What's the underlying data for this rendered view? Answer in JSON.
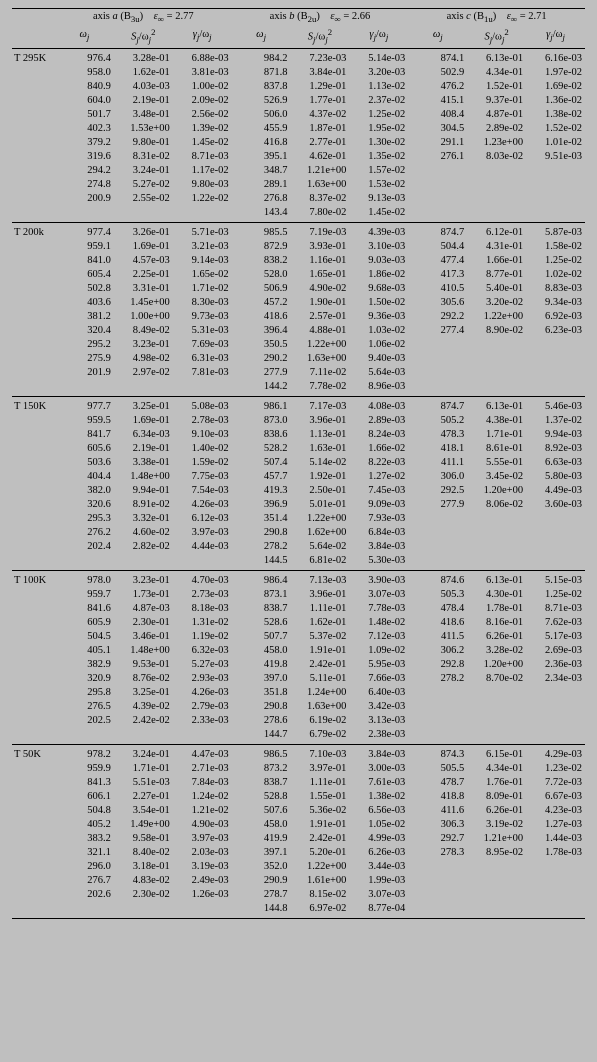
{
  "header": {
    "axis_a": {
      "label_prefix": "axis ",
      "letter": "a",
      "sym": " (B",
      "sub": "3u",
      "close": ")",
      "eps_label": "ε",
      "eps_sub": "∞",
      "eps_eq": " = ",
      "eps_val": "2.77"
    },
    "axis_b": {
      "label_prefix": "axis ",
      "letter": "b",
      "sym": " (B",
      "sub": "2u",
      "close": ")",
      "eps_label": "ε",
      "eps_sub": "∞",
      "eps_eq": " = ",
      "eps_val": "2.66"
    },
    "axis_c": {
      "label_prefix": "axis ",
      "letter": "c",
      "sym": " (B",
      "sub": "1u",
      "close": ")",
      "eps_label": "ε",
      "eps_sub": "∞",
      "eps_eq": " = ",
      "eps_val": "2.71"
    },
    "col": {
      "omega": "ω",
      "omega_sub": "j",
      "S": "S",
      "S_sub": "j",
      "over": "/ω",
      "over_sub": "j",
      "sq": "2",
      "gamma": "γ",
      "gamma_sub": "j"
    }
  },
  "sections": [
    {
      "label": "T 295K",
      "rows": [
        [
          "976.4",
          "3.28e-01",
          "6.88e-03",
          "984.2",
          "7.23e-03",
          "5.14e-03",
          "874.1",
          "6.13e-01",
          "6.16e-03"
        ],
        [
          "958.0",
          "1.62e-01",
          "3.81e-03",
          "871.8",
          "3.84e-01",
          "3.20e-03",
          "502.9",
          "4.34e-01",
          "1.97e-02"
        ],
        [
          "840.9",
          "4.03e-03",
          "1.00e-02",
          "837.8",
          "1.29e-01",
          "1.13e-02",
          "476.2",
          "1.52e-01",
          "1.69e-02"
        ],
        [
          "604.0",
          "2.19e-01",
          "2.09e-02",
          "526.9",
          "1.77e-01",
          "2.37e-02",
          "415.1",
          "9.37e-01",
          "1.36e-02"
        ],
        [
          "501.7",
          "3.48e-01",
          "2.56e-02",
          "506.0",
          "4.37e-02",
          "1.25e-02",
          "408.4",
          "4.87e-01",
          "1.38e-02"
        ],
        [
          "402.3",
          "1.53e+00",
          "1.39e-02",
          "455.9",
          "1.87e-01",
          "1.95e-02",
          "304.5",
          "2.89e-02",
          "1.52e-02"
        ],
        [
          "379.2",
          "9.80e-01",
          "1.45e-02",
          "416.8",
          "2.77e-01",
          "1.30e-02",
          "291.1",
          "1.23e+00",
          "1.01e-02"
        ],
        [
          "319.6",
          "8.31e-02",
          "8.71e-03",
          "395.1",
          "4.62e-01",
          "1.35e-02",
          "276.1",
          "8.03e-02",
          "9.51e-03"
        ],
        [
          "294.2",
          "3.24e-01",
          "1.17e-02",
          "348.7",
          "1.21e+00",
          "1.57e-02",
          "",
          "",
          ""
        ],
        [
          "274.8",
          "5.27e-02",
          "9.80e-03",
          "289.1",
          "1.63e+00",
          "1.53e-02",
          "",
          "",
          ""
        ],
        [
          "200.9",
          "2.55e-02",
          "1.22e-02",
          "276.8",
          "8.37e-02",
          "9.13e-03",
          "",
          "",
          ""
        ],
        [
          "",
          "",
          "",
          "143.4",
          "7.80e-02",
          "1.45e-02",
          "",
          "",
          ""
        ]
      ]
    },
    {
      "label": "T 200k",
      "rows": [
        [
          "977.4",
          "3.26e-01",
          "5.71e-03",
          "985.5",
          "7.19e-03",
          "4.39e-03",
          "874.7",
          "6.12e-01",
          "5.87e-03"
        ],
        [
          "959.1",
          "1.69e-01",
          "3.21e-03",
          "872.9",
          "3.93e-01",
          "3.10e-03",
          "504.4",
          "4.31e-01",
          "1.58e-02"
        ],
        [
          "841.0",
          "4.57e-03",
          "9.14e-03",
          "838.2",
          "1.16e-01",
          "9.03e-03",
          "477.4",
          "1.66e-01",
          "1.25e-02"
        ],
        [
          "605.4",
          "2.25e-01",
          "1.65e-02",
          "528.0",
          "1.65e-01",
          "1.86e-02",
          "417.3",
          "8.77e-01",
          "1.02e-02"
        ],
        [
          "502.8",
          "3.31e-01",
          "1.71e-02",
          "506.9",
          "4.90e-02",
          "9.68e-03",
          "410.5",
          "5.40e-01",
          "8.83e-03"
        ],
        [
          "403.6",
          "1.45e+00",
          "8.30e-03",
          "457.2",
          "1.90e-01",
          "1.50e-02",
          "305.6",
          "3.20e-02",
          "9.34e-03"
        ],
        [
          "381.2",
          "1.00e+00",
          "9.73e-03",
          "418.6",
          "2.57e-01",
          "9.36e-03",
          "292.2",
          "1.22e+00",
          "6.92e-03"
        ],
        [
          "320.4",
          "8.49e-02",
          "5.31e-03",
          "396.4",
          "4.88e-01",
          "1.03e-02",
          "277.4",
          "8.90e-02",
          "6.23e-03"
        ],
        [
          "295.2",
          "3.23e-01",
          "7.69e-03",
          "350.5",
          "1.22e+00",
          "1.06e-02",
          "",
          "",
          ""
        ],
        [
          "275.9",
          "4.98e-02",
          "6.31e-03",
          "290.2",
          "1.63e+00",
          "9.40e-03",
          "",
          "",
          ""
        ],
        [
          "201.9",
          "2.97e-02",
          "7.81e-03",
          "277.9",
          "7.11e-02",
          "5.64e-03",
          "",
          "",
          ""
        ],
        [
          "",
          "",
          "",
          "144.2",
          "7.78e-02",
          "8.96e-03",
          "",
          "",
          ""
        ]
      ]
    },
    {
      "label": "T 150K",
      "rows": [
        [
          "977.7",
          "3.25e-01",
          "5.08e-03",
          "986.1",
          "7.17e-03",
          "4.08e-03",
          "874.7",
          "6.13e-01",
          "5.46e-03"
        ],
        [
          "959.5",
          "1.69e-01",
          "2.78e-03",
          "873.0",
          "3.96e-01",
          "2.89e-03",
          "505.2",
          "4.38e-01",
          "1.37e-02"
        ],
        [
          "841.7",
          "6.34e-03",
          "9.10e-03",
          "838.6",
          "1.13e-01",
          "8.24e-03",
          "478.3",
          "1.71e-01",
          "9.94e-03"
        ],
        [
          "605.6",
          "2.19e-01",
          "1.40e-02",
          "528.2",
          "1.63e-01",
          "1.66e-02",
          "418.1",
          "8.61e-01",
          "8.92e-03"
        ],
        [
          "503.6",
          "3.38e-01",
          "1.59e-02",
          "507.4",
          "5.14e-02",
          "8.22e-03",
          "411.1",
          "5.55e-01",
          "6.63e-03"
        ],
        [
          "404.4",
          "1.48e+00",
          "7.75e-03",
          "457.7",
          "1.92e-01",
          "1.27e-02",
          "306.0",
          "3.45e-02",
          "5.80e-03"
        ],
        [
          "382.0",
          "9.94e-01",
          "7.54e-03",
          "419.3",
          "2.50e-01",
          "7.45e-03",
          "292.5",
          "1.20e+00",
          "4.49e-03"
        ],
        [
          "320.6",
          "8.91e-02",
          "4.26e-03",
          "396.9",
          "5.01e-01",
          "9.09e-03",
          "277.9",
          "8.06e-02",
          "3.60e-03"
        ],
        [
          "295.3",
          "3.32e-01",
          "6.12e-03",
          "351.4",
          "1.22e+00",
          "7.93e-03",
          "",
          "",
          ""
        ],
        [
          "276.2",
          "4.60e-02",
          "3.97e-03",
          "290.8",
          "1.62e+00",
          "6.84e-03",
          "",
          "",
          ""
        ],
        [
          "202.4",
          "2.82e-02",
          "4.44e-03",
          "278.2",
          "5.64e-02",
          "3.84e-03",
          "",
          "",
          ""
        ],
        [
          "",
          "",
          "",
          "144.5",
          "6.81e-02",
          "5.30e-03",
          "",
          "",
          ""
        ]
      ]
    },
    {
      "label": "T 100K",
      "rows": [
        [
          "978.0",
          "3.23e-01",
          "4.70e-03",
          "986.4",
          "7.13e-03",
          "3.90e-03",
          "874.6",
          "6.13e-01",
          "5.15e-03"
        ],
        [
          "959.7",
          "1.73e-01",
          "2.73e-03",
          "873.1",
          "3.96e-01",
          "3.07e-03",
          "505.3",
          "4.30e-01",
          "1.25e-02"
        ],
        [
          "841.6",
          "4.87e-03",
          "8.18e-03",
          "838.7",
          "1.11e-01",
          "7.78e-03",
          "478.4",
          "1.78e-01",
          "8.71e-03"
        ],
        [
          "605.9",
          "2.30e-01",
          "1.31e-02",
          "528.6",
          "1.62e-01",
          "1.48e-02",
          "418.6",
          "8.16e-01",
          "7.62e-03"
        ],
        [
          "504.5",
          "3.46e-01",
          "1.19e-02",
          "507.7",
          "5.37e-02",
          "7.12e-03",
          "411.5",
          "6.26e-01",
          "5.17e-03"
        ],
        [
          "405.1",
          "1.48e+00",
          "6.32e-03",
          "458.0",
          "1.91e-01",
          "1.09e-02",
          "306.2",
          "3.28e-02",
          "2.69e-03"
        ],
        [
          "382.9",
          "9.53e-01",
          "5.27e-03",
          "419.8",
          "2.42e-01",
          "5.95e-03",
          "292.8",
          "1.20e+00",
          "2.36e-03"
        ],
        [
          "320.9",
          "8.76e-02",
          "2.93e-03",
          "397.0",
          "5.11e-01",
          "7.66e-03",
          "278.2",
          "8.70e-02",
          "2.34e-03"
        ],
        [
          "295.8",
          "3.25e-01",
          "4.26e-03",
          "351.8",
          "1.24e+00",
          "6.40e-03",
          "",
          "",
          ""
        ],
        [
          "276.5",
          "4.39e-02",
          "2.79e-03",
          "290.8",
          "1.63e+00",
          "3.42e-03",
          "",
          "",
          ""
        ],
        [
          "202.5",
          "2.42e-02",
          "2.33e-03",
          "278.6",
          "6.19e-02",
          "3.13e-03",
          "",
          "",
          ""
        ],
        [
          "",
          "",
          "",
          "144.7",
          "6.79e-02",
          "2.38e-03",
          "",
          "",
          ""
        ]
      ]
    },
    {
      "label": "T 50K",
      "rows": [
        [
          "978.2",
          "3.24e-01",
          "4.47e-03",
          "986.5",
          "7.10e-03",
          "3.84e-03",
          "874.3",
          "6.15e-01",
          "4.29e-03"
        ],
        [
          "959.9",
          "1.71e-01",
          "2.71e-03",
          "873.2",
          "3.97e-01",
          "3.00e-03",
          "505.5",
          "4.34e-01",
          "1.23e-02"
        ],
        [
          "841.3",
          "5.51e-03",
          "7.84e-03",
          "838.7",
          "1.11e-01",
          "7.61e-03",
          "478.7",
          "1.76e-01",
          "7.72e-03"
        ],
        [
          "606.1",
          "2.27e-01",
          "1.24e-02",
          "528.8",
          "1.55e-01",
          "1.38e-02",
          "418.8",
          "8.09e-01",
          "6.67e-03"
        ],
        [
          "504.8",
          "3.54e-01",
          "1.21e-02",
          "507.6",
          "5.36e-02",
          "6.56e-03",
          "411.6",
          "6.26e-01",
          "4.23e-03"
        ],
        [
          "405.2",
          "1.49e+00",
          "4.90e-03",
          "458.0",
          "1.91e-01",
          "1.05e-02",
          "306.3",
          "3.19e-02",
          "1.27e-03"
        ],
        [
          "383.2",
          "9.58e-01",
          "3.97e-03",
          "419.9",
          "2.42e-01",
          "4.99e-03",
          "292.7",
          "1.21e+00",
          "1.44e-03"
        ],
        [
          "321.1",
          "8.40e-02",
          "2.03e-03",
          "397.1",
          "5.20e-01",
          "6.26e-03",
          "278.3",
          "8.95e-02",
          "1.78e-03"
        ],
        [
          "296.0",
          "3.18e-01",
          "3.19e-03",
          "352.0",
          "1.22e+00",
          "3.44e-03",
          "",
          "",
          ""
        ],
        [
          "276.7",
          "4.83e-02",
          "2.49e-03",
          "290.9",
          "1.61e+00",
          "1.99e-03",
          "",
          "",
          ""
        ],
        [
          "202.6",
          "2.30e-02",
          "1.26e-03",
          "278.7",
          "8.15e-02",
          "3.07e-03",
          "",
          "",
          ""
        ],
        [
          "",
          "",
          "",
          "144.8",
          "6.97e-02",
          "8.77e-04",
          "",
          "",
          ""
        ]
      ]
    }
  ]
}
